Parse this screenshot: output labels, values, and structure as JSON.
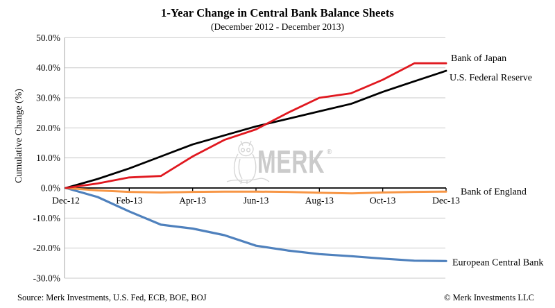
{
  "header": {
    "title": "1-Year Change in Central Bank Balance Sheets",
    "subtitle": "(December 2012 - December 2013)"
  },
  "watermark": {
    "text": "MERK",
    "registered": "®"
  },
  "footer": {
    "source": "Source: Merk Investments, U.S. Fed, ECB, BOE, BOJ",
    "copyright": "© Merk Investments LLC"
  },
  "chart_data": {
    "type": "line",
    "title": "1-Year Change in Central Bank Balance Sheets",
    "subtitle": "(December 2012 - December 2013)",
    "xlabel": "",
    "ylabel": "Cumulative Change (%)",
    "ylim": [
      -30,
      50
    ],
    "ytick_step": 10,
    "ytick_format": "one_decimal_percent",
    "grid": true,
    "legend_position": "labels-at-line-ends-right",
    "x": [
      "Dec-12",
      "Jan-13",
      "Feb-13",
      "Mar-13",
      "Apr-13",
      "May-13",
      "Jun-13",
      "Jul-13",
      "Aug-13",
      "Sep-13",
      "Oct-13",
      "Nov-13",
      "Dec-13"
    ],
    "x_tick_labels": [
      "Dec-12",
      "Feb-13",
      "Apr-13",
      "Jun-13",
      "Aug-13",
      "Oct-13",
      "Dec-13"
    ],
    "series": [
      {
        "name": "Bank of Japan",
        "color": "#e0181f",
        "values": [
          0,
          1.5,
          3.5,
          4.0,
          10.5,
          16.0,
          19.5,
          25.0,
          30.0,
          31.5,
          36.0,
          41.5,
          41.5
        ]
      },
      {
        "name": "U.S. Federal Reserve",
        "color": "#000000",
        "values": [
          0,
          3.0,
          6.5,
          10.5,
          14.5,
          17.5,
          20.5,
          23.0,
          25.5,
          28.0,
          32.0,
          35.5,
          39.0
        ]
      },
      {
        "name": "Bank of England",
        "color": "#f79646",
        "values": [
          0,
          -0.8,
          -1.3,
          -1.5,
          -1.3,
          -1.2,
          -1.2,
          -1.3,
          -1.6,
          -1.8,
          -1.5,
          -1.3,
          -1.2
        ]
      },
      {
        "name": "European Central Bank",
        "color": "#4f81bd",
        "values": [
          0,
          -3.0,
          -7.8,
          -12.2,
          -13.5,
          -15.7,
          -19.2,
          -20.8,
          -22.0,
          -22.7,
          -23.5,
          -24.2,
          -24.3
        ]
      }
    ],
    "axis_colors": {
      "gridline": "#c9c9c9",
      "x_axis": "#000000",
      "y_axis": "#a6a6a6",
      "watermark": "#d6d6d6"
    }
  }
}
